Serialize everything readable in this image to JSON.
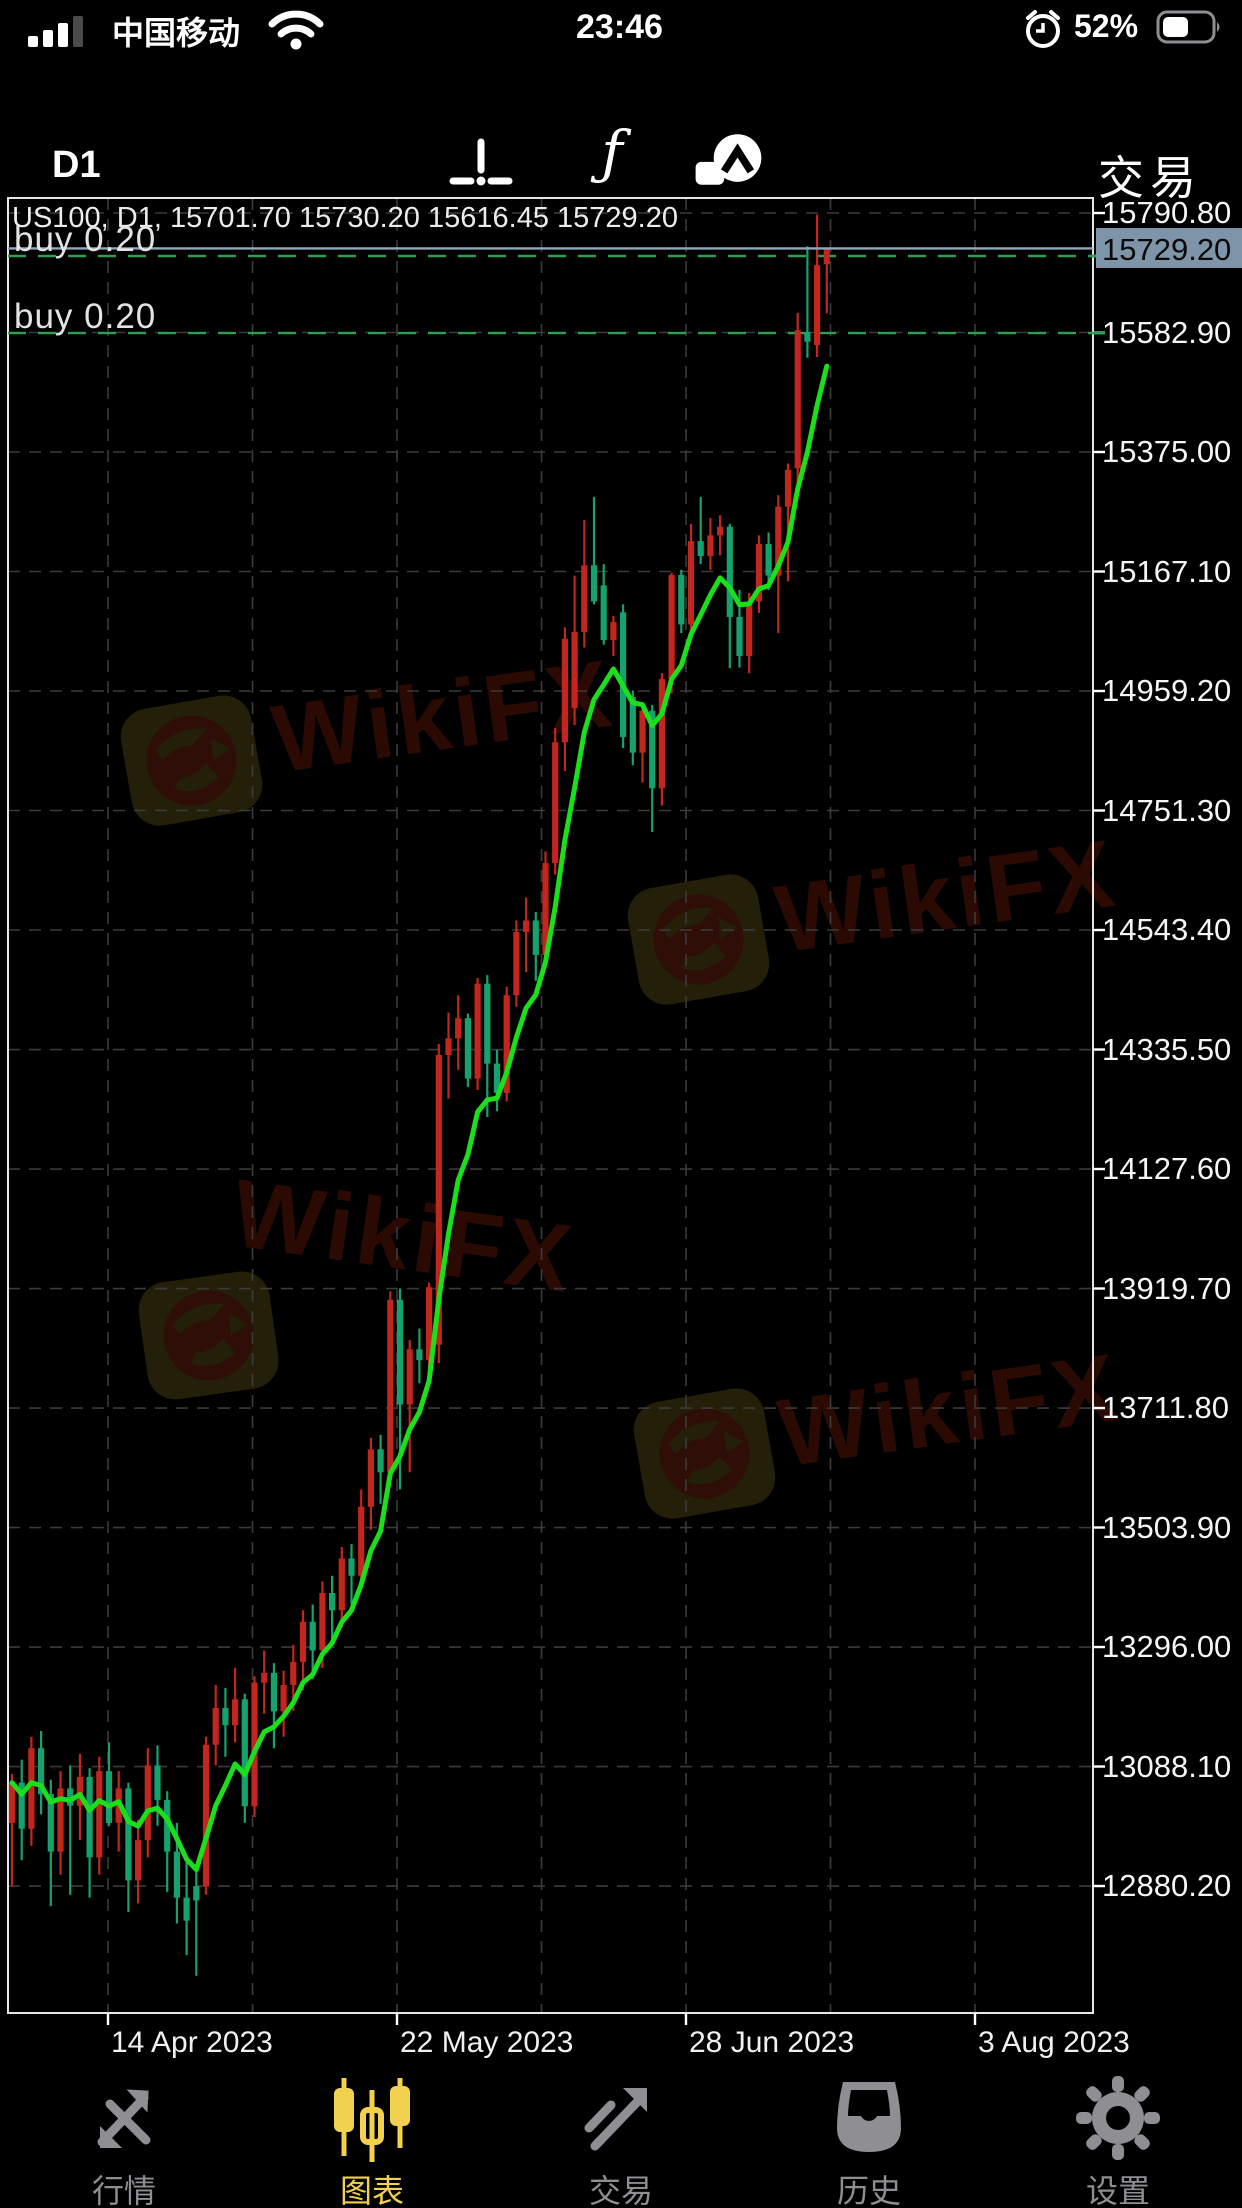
{
  "status_bar": {
    "carrier": "中国移动",
    "time": "23:46",
    "battery_percent": "52%"
  },
  "toolbar": {
    "timeframe": "D1",
    "trade_label": "交易"
  },
  "chart": {
    "header": "US100, D1, 15701.70 15730.20 15616.45 15729.20",
    "watermark_text": "WikiFX",
    "buy_label_1": "buy 0.20",
    "buy_label_2": "buy 0.20",
    "current_price_label": "15729.20",
    "date_labels": [
      "14 Apr 2023",
      "22 May 2023",
      "28 Jun 2023",
      "3 Aug 2023"
    ]
  },
  "chart_data": {
    "type": "candlestick",
    "symbol": "US100",
    "timeframe": "D1",
    "last_ohlc": {
      "open": 15701.7,
      "high": 15730.2,
      "low": 15616.45,
      "close": 15729.2
    },
    "ylim": [
      12659.3,
      15816.9
    ],
    "price_axis_levels": [
      15790.8,
      15582.9,
      15375.0,
      15167.1,
      14959.2,
      14751.3,
      14543.4,
      14335.5,
      14127.6,
      13919.7,
      13711.8,
      13503.9,
      13296.0,
      13088.1,
      12880.2
    ],
    "current_price": 15729.2,
    "buy_lines": [
      {
        "label": "buy 0.20",
        "price": 15716.0
      },
      {
        "label": "buy 0.20",
        "price": 15582.0
      }
    ],
    "ma": {
      "period": 7,
      "color": "#1bdf1b"
    },
    "colors": {
      "up": "#c3261c",
      "down": "#16a26c",
      "grid": "#3b3b3b",
      "border": "#e6e6e6",
      "price_line": "#91a7bc",
      "buy_line": "#2e9e53"
    },
    "x_axis_labels": [
      "14 Apr 2023",
      "22 May 2023",
      "28 Jun 2023",
      "3 Aug 2023"
    ],
    "candles": [
      [
        12990,
        13075,
        12880,
        13060
      ],
      [
        13060,
        13100,
        12925,
        12980
      ],
      [
        12980,
        13140,
        12950,
        13120
      ],
      [
        13120,
        13150,
        13005,
        13040
      ],
      [
        13040,
        13065,
        12845,
        12940
      ],
      [
        12940,
        13080,
        12900,
        13050
      ],
      [
        13050,
        13090,
        12865,
        13020
      ],
      [
        13020,
        13110,
        12960,
        13070
      ],
      [
        13070,
        13085,
        12860,
        12930
      ],
      [
        12930,
        13105,
        12900,
        13080
      ],
      [
        13080,
        13130,
        12985,
        12990
      ],
      [
        12990,
        13080,
        12940,
        13050
      ],
      [
        13050,
        13060,
        12835,
        12890
      ],
      [
        12890,
        12995,
        12850,
        12960
      ],
      [
        12960,
        13120,
        12930,
        13090
      ],
      [
        13090,
        13125,
        12985,
        13030
      ],
      [
        13030,
        13045,
        12870,
        12940
      ],
      [
        12940,
        12990,
        12815,
        12860
      ],
      [
        12860,
        12930,
        12760,
        12820
      ],
      [
        12880,
        12910,
        12724,
        12855
      ],
      [
        12880,
        13140,
        12865,
        13126
      ],
      [
        13126,
        13230,
        13090,
        13190
      ],
      [
        13190,
        13225,
        13105,
        13160
      ],
      [
        13160,
        13260,
        13130,
        13205
      ],
      [
        13205,
        13215,
        12990,
        13019
      ],
      [
        13019,
        13245,
        13000,
        13234
      ],
      [
        13234,
        13290,
        13180,
        13251
      ],
      [
        13251,
        13268,
        13120,
        13184
      ],
      [
        13184,
        13255,
        13140,
        13230
      ],
      [
        13230,
        13300,
        13185,
        13270
      ],
      [
        13270,
        13360,
        13220,
        13340
      ],
      [
        13340,
        13370,
        13240,
        13290
      ],
      [
        13290,
        13410,
        13260,
        13390
      ],
      [
        13390,
        13420,
        13310,
        13360
      ],
      [
        13360,
        13470,
        13330,
        13450
      ],
      [
        13450,
        13475,
        13370,
        13420
      ],
      [
        13420,
        13570,
        13400,
        13540
      ],
      [
        13540,
        13660,
        13500,
        13640
      ],
      [
        13640,
        13665,
        13545,
        13600
      ],
      [
        13600,
        13915,
        13575,
        13900
      ],
      [
        13900,
        13920,
        13570,
        13718
      ],
      [
        13718,
        13830,
        13600,
        13814
      ],
      [
        13814,
        13850,
        13755,
        13795
      ],
      [
        13795,
        13930,
        13770,
        13922
      ],
      [
        13822,
        14345,
        13790,
        14326
      ],
      [
        14326,
        14400,
        14250,
        14355
      ],
      [
        14355,
        14430,
        14300,
        14390
      ],
      [
        14390,
        14398,
        14270,
        14285
      ],
      [
        14285,
        14460,
        14265,
        14450
      ],
      [
        14450,
        14465,
        14218,
        14311
      ],
      [
        14311,
        14335,
        14228,
        14260
      ],
      [
        14260,
        14445,
        14245,
        14430
      ],
      [
        14430,
        14560,
        14410,
        14540
      ],
      [
        14540,
        14600,
        14470,
        14560
      ],
      [
        14560,
        14575,
        14455,
        14500
      ],
      [
        14500,
        14680,
        14480,
        14660
      ],
      [
        14660,
        14895,
        14640,
        14870
      ],
      [
        14870,
        15070,
        14820,
        15050
      ],
      [
        14930,
        15160,
        14900,
        15062
      ],
      [
        15062,
        15257,
        15035,
        15178
      ],
      [
        15178,
        15297,
        15110,
        15115
      ],
      [
        15143,
        15180,
        15040,
        15048
      ],
      [
        15048,
        15090,
        15020,
        15079
      ],
      [
        15096,
        15110,
        14860,
        14879
      ],
      [
        14949,
        14960,
        14830,
        14852
      ],
      [
        14852,
        14940,
        14800,
        14925
      ],
      [
        14925,
        14935,
        14714,
        14790
      ],
      [
        14790,
        14990,
        14760,
        14980
      ],
      [
        14980,
        15165,
        14955,
        15161
      ],
      [
        15161,
        15170,
        15060,
        15075
      ],
      [
        15075,
        15250,
        15050,
        15220
      ],
      [
        15220,
        15297,
        15180,
        15194
      ],
      [
        15194,
        15260,
        15170,
        15230
      ],
      [
        15230,
        15265,
        15195,
        15245
      ],
      [
        15245,
        15250,
        14999,
        15088
      ],
      [
        15088,
        15135,
        15000,
        15020
      ],
      [
        15020,
        15130,
        14990,
        15115
      ],
      [
        15115,
        15230,
        15095,
        15215
      ],
      [
        15215,
        15235,
        15135,
        15160
      ],
      [
        15160,
        15300,
        15060,
        15280
      ],
      [
        15280,
        15355,
        15150,
        15344
      ],
      [
        15347,
        15617,
        15310,
        15587
      ],
      [
        15584,
        15733,
        15539,
        15567
      ],
      [
        15561,
        15788,
        15540,
        15700
      ],
      [
        15701.7,
        15730.2,
        15616.45,
        15729.2
      ]
    ]
  },
  "tab_bar": {
    "items": [
      {
        "label": "行情",
        "icon": "trend-arrows-icon",
        "active": false
      },
      {
        "label": "图表",
        "icon": "candles-icon",
        "active": true
      },
      {
        "label": "交易",
        "icon": "trade-arrow-icon",
        "active": false
      },
      {
        "label": "历史",
        "icon": "history-box-icon",
        "active": false
      },
      {
        "label": "设置",
        "icon": "gear-icon",
        "active": false
      }
    ],
    "active_color": "#f2d14e",
    "inactive_color": "#8f8f93"
  }
}
